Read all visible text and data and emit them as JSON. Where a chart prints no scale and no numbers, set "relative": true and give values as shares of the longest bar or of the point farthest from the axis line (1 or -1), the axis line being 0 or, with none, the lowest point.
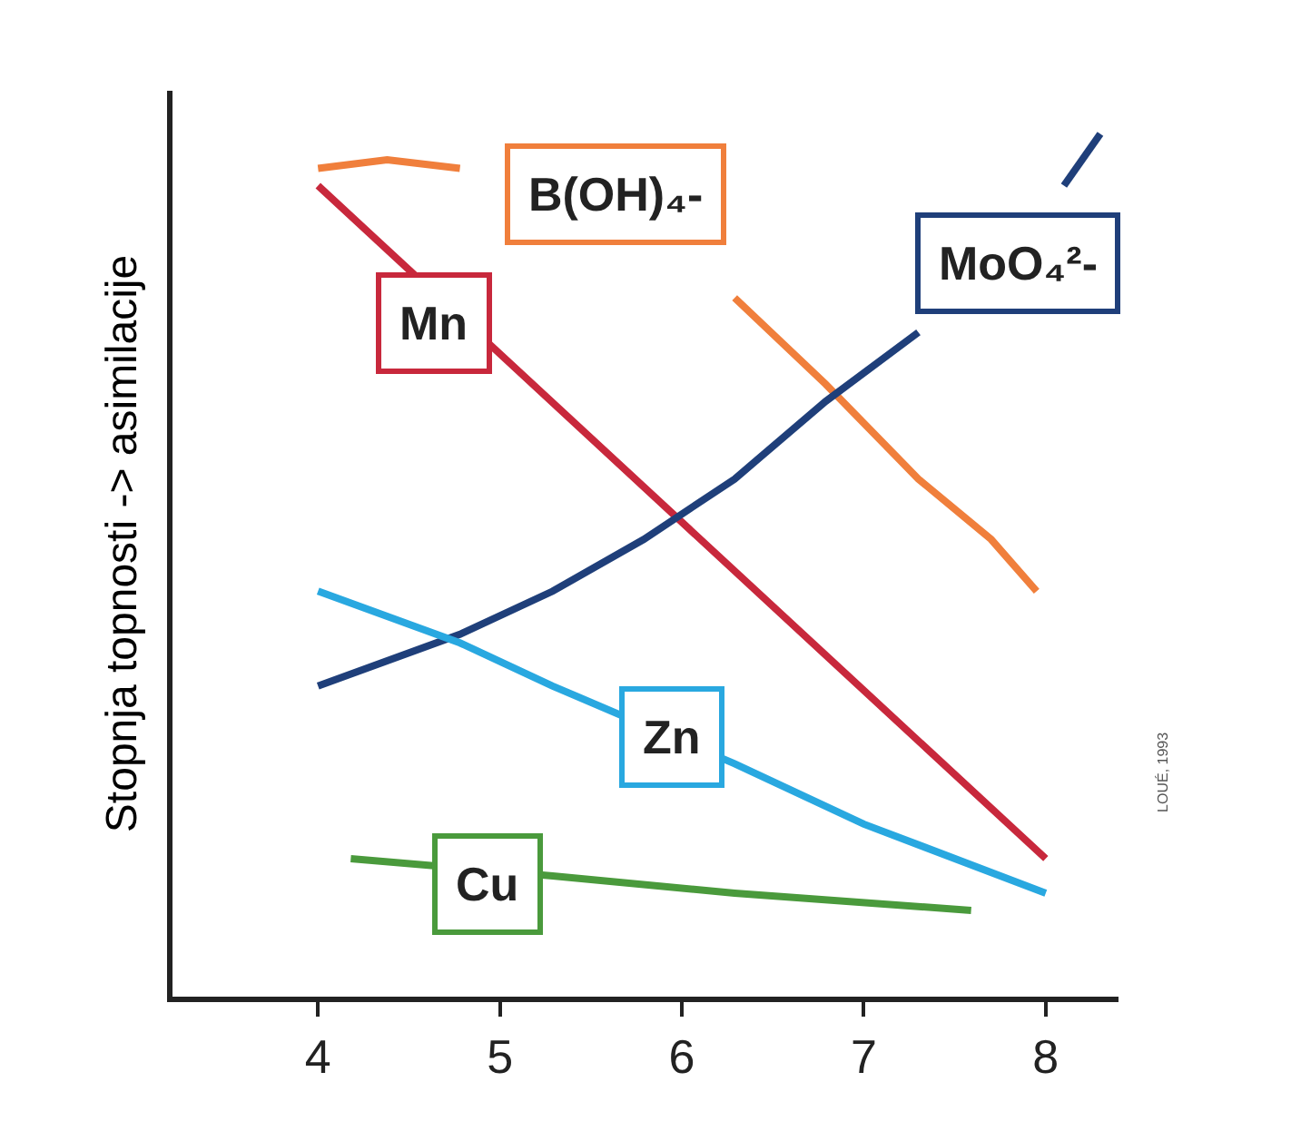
{
  "chart_data": {
    "type": "line",
    "ylabel": "Stopnja topnosti -> asimilacije",
    "relative": true,
    "tick_labels": "x",
    "xlim": [
      3.2,
      8.4
    ],
    "xticks": [
      4,
      5,
      6,
      7,
      8
    ],
    "annotations": [
      "LOUÉ, 1993"
    ],
    "series": [
      {
        "name": "B(OH)₄-",
        "color": "#f07f3c",
        "x": [
          4.0,
          4.38,
          4.78,
          5.29,
          5.79,
          6.29,
          6.79,
          7.3,
          7.7,
          7.95
        ],
        "values": [
          0.96,
          0.97,
          0.96,
          null,
          null,
          0.81,
          0.71,
          0.6,
          0.53,
          0.47
        ]
      },
      {
        "name": "Mn",
        "color": "#c8283c",
        "x": [
          4.0,
          6.0,
          8.0
        ],
        "values": [
          0.94,
          0.55,
          0.16
        ]
      },
      {
        "name": "MoO₄²-",
        "color": "#1f3f7a",
        "x": [
          4.0,
          4.78,
          5.29,
          5.79,
          6.29,
          6.79,
          7.3,
          7.7,
          8.1,
          8.3
        ],
        "values": [
          0.36,
          0.42,
          0.47,
          0.53,
          0.6,
          0.69,
          0.77,
          null,
          0.94,
          1.0
        ]
      },
      {
        "name": "Zn",
        "color": "#29a8e0",
        "x": [
          4.0,
          4.78,
          5.29,
          6.29,
          7.0,
          8.0
        ],
        "values": [
          0.47,
          0.41,
          0.36,
          0.27,
          0.2,
          0.12
        ]
      },
      {
        "name": "Cu",
        "color": "#4a9a3c",
        "x": [
          4.18,
          5.29,
          6.29,
          7.59
        ],
        "values": [
          0.16,
          0.14,
          0.12,
          0.1
        ]
      }
    ]
  }
}
